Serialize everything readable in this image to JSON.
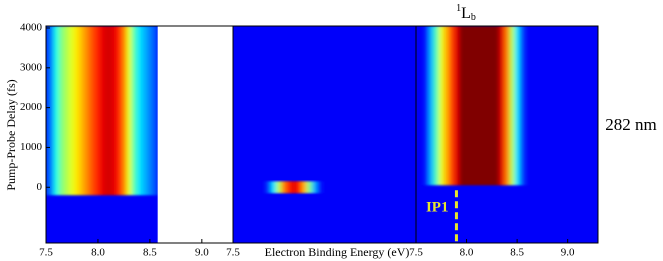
{
  "chart_data": [
    {
      "type": "heatmap",
      "y_label": "Pump-Probe Delay (fs)",
      "ylim": [
        -1400,
        4050
      ],
      "yticks": [
        0,
        1000,
        2000,
        3000,
        4000
      ],
      "xlim": [
        7.5,
        9.3
      ],
      "xticks": [
        7.5,
        {
          "value": 8,
          "label": "8.0"
        },
        8.5,
        {
          "value": 9,
          "label": "9.0"
        }
      ],
      "delay_range": [
        -200,
        4050
      ],
      "x": [
        7.5,
        7.55,
        7.6,
        7.65,
        7.7,
        7.75,
        7.8,
        7.85,
        7.9,
        7.95,
        8.0,
        8.05,
        8.1,
        8.15,
        8.2,
        8.25,
        8.3,
        8.35,
        8.4,
        8.45,
        8.5,
        8.55
      ],
      "values": [
        0.15,
        0.25,
        0.4,
        0.5,
        0.55,
        0.6,
        0.65,
        0.7,
        0.75,
        0.8,
        0.85,
        0.9,
        0.92,
        0.9,
        0.85,
        0.75,
        0.6,
        0.45,
        0.35,
        0.3,
        0.25,
        0.2
      ]
    },
    {
      "type": "heatmap",
      "x_label": "Electron Binding Energy (eV)",
      "xlim": [
        7.5,
        9.3
      ],
      "xticks": [
        7.5
      ],
      "delay_range": [
        -150,
        150
      ],
      "x": [
        7.85,
        7.9,
        7.95,
        8.0,
        8.05,
        8.1,
        8.15,
        8.2,
        8.25,
        8.3,
        8.35
      ],
      "values": [
        0.2,
        0.35,
        0.55,
        0.75,
        0.85,
        0.9,
        0.85,
        0.7,
        0.5,
        0.3,
        0.15
      ]
    },
    {
      "type": "heatmap",
      "xlim": [
        7.5,
        9.3
      ],
      "xticks": [
        7.5,
        {
          "value": 8,
          "label": "8.0"
        },
        8.5,
        {
          "value": 9,
          "label": "9.0"
        }
      ],
      "delay_range": [
        50,
        4050
      ],
      "x": [
        7.6,
        7.65,
        7.7,
        7.75,
        7.8,
        7.85,
        7.9,
        7.95,
        8.0,
        8.05,
        8.1,
        8.15,
        8.2,
        8.25,
        8.3,
        8.35,
        8.4,
        8.45,
        8.5,
        8.55
      ],
      "values": [
        0.15,
        0.3,
        0.45,
        0.6,
        0.7,
        0.8,
        0.9,
        1,
        1,
        1,
        1,
        1,
        1,
        1,
        1,
        0.9,
        0.75,
        0.55,
        0.35,
        0.2
      ],
      "state_label": {
        "superscript": "1",
        "text": "L",
        "subscript": "b"
      },
      "ip_label": "IP1",
      "ip_energy": 7.9,
      "wavelength_label": "282 nm"
    }
  ]
}
